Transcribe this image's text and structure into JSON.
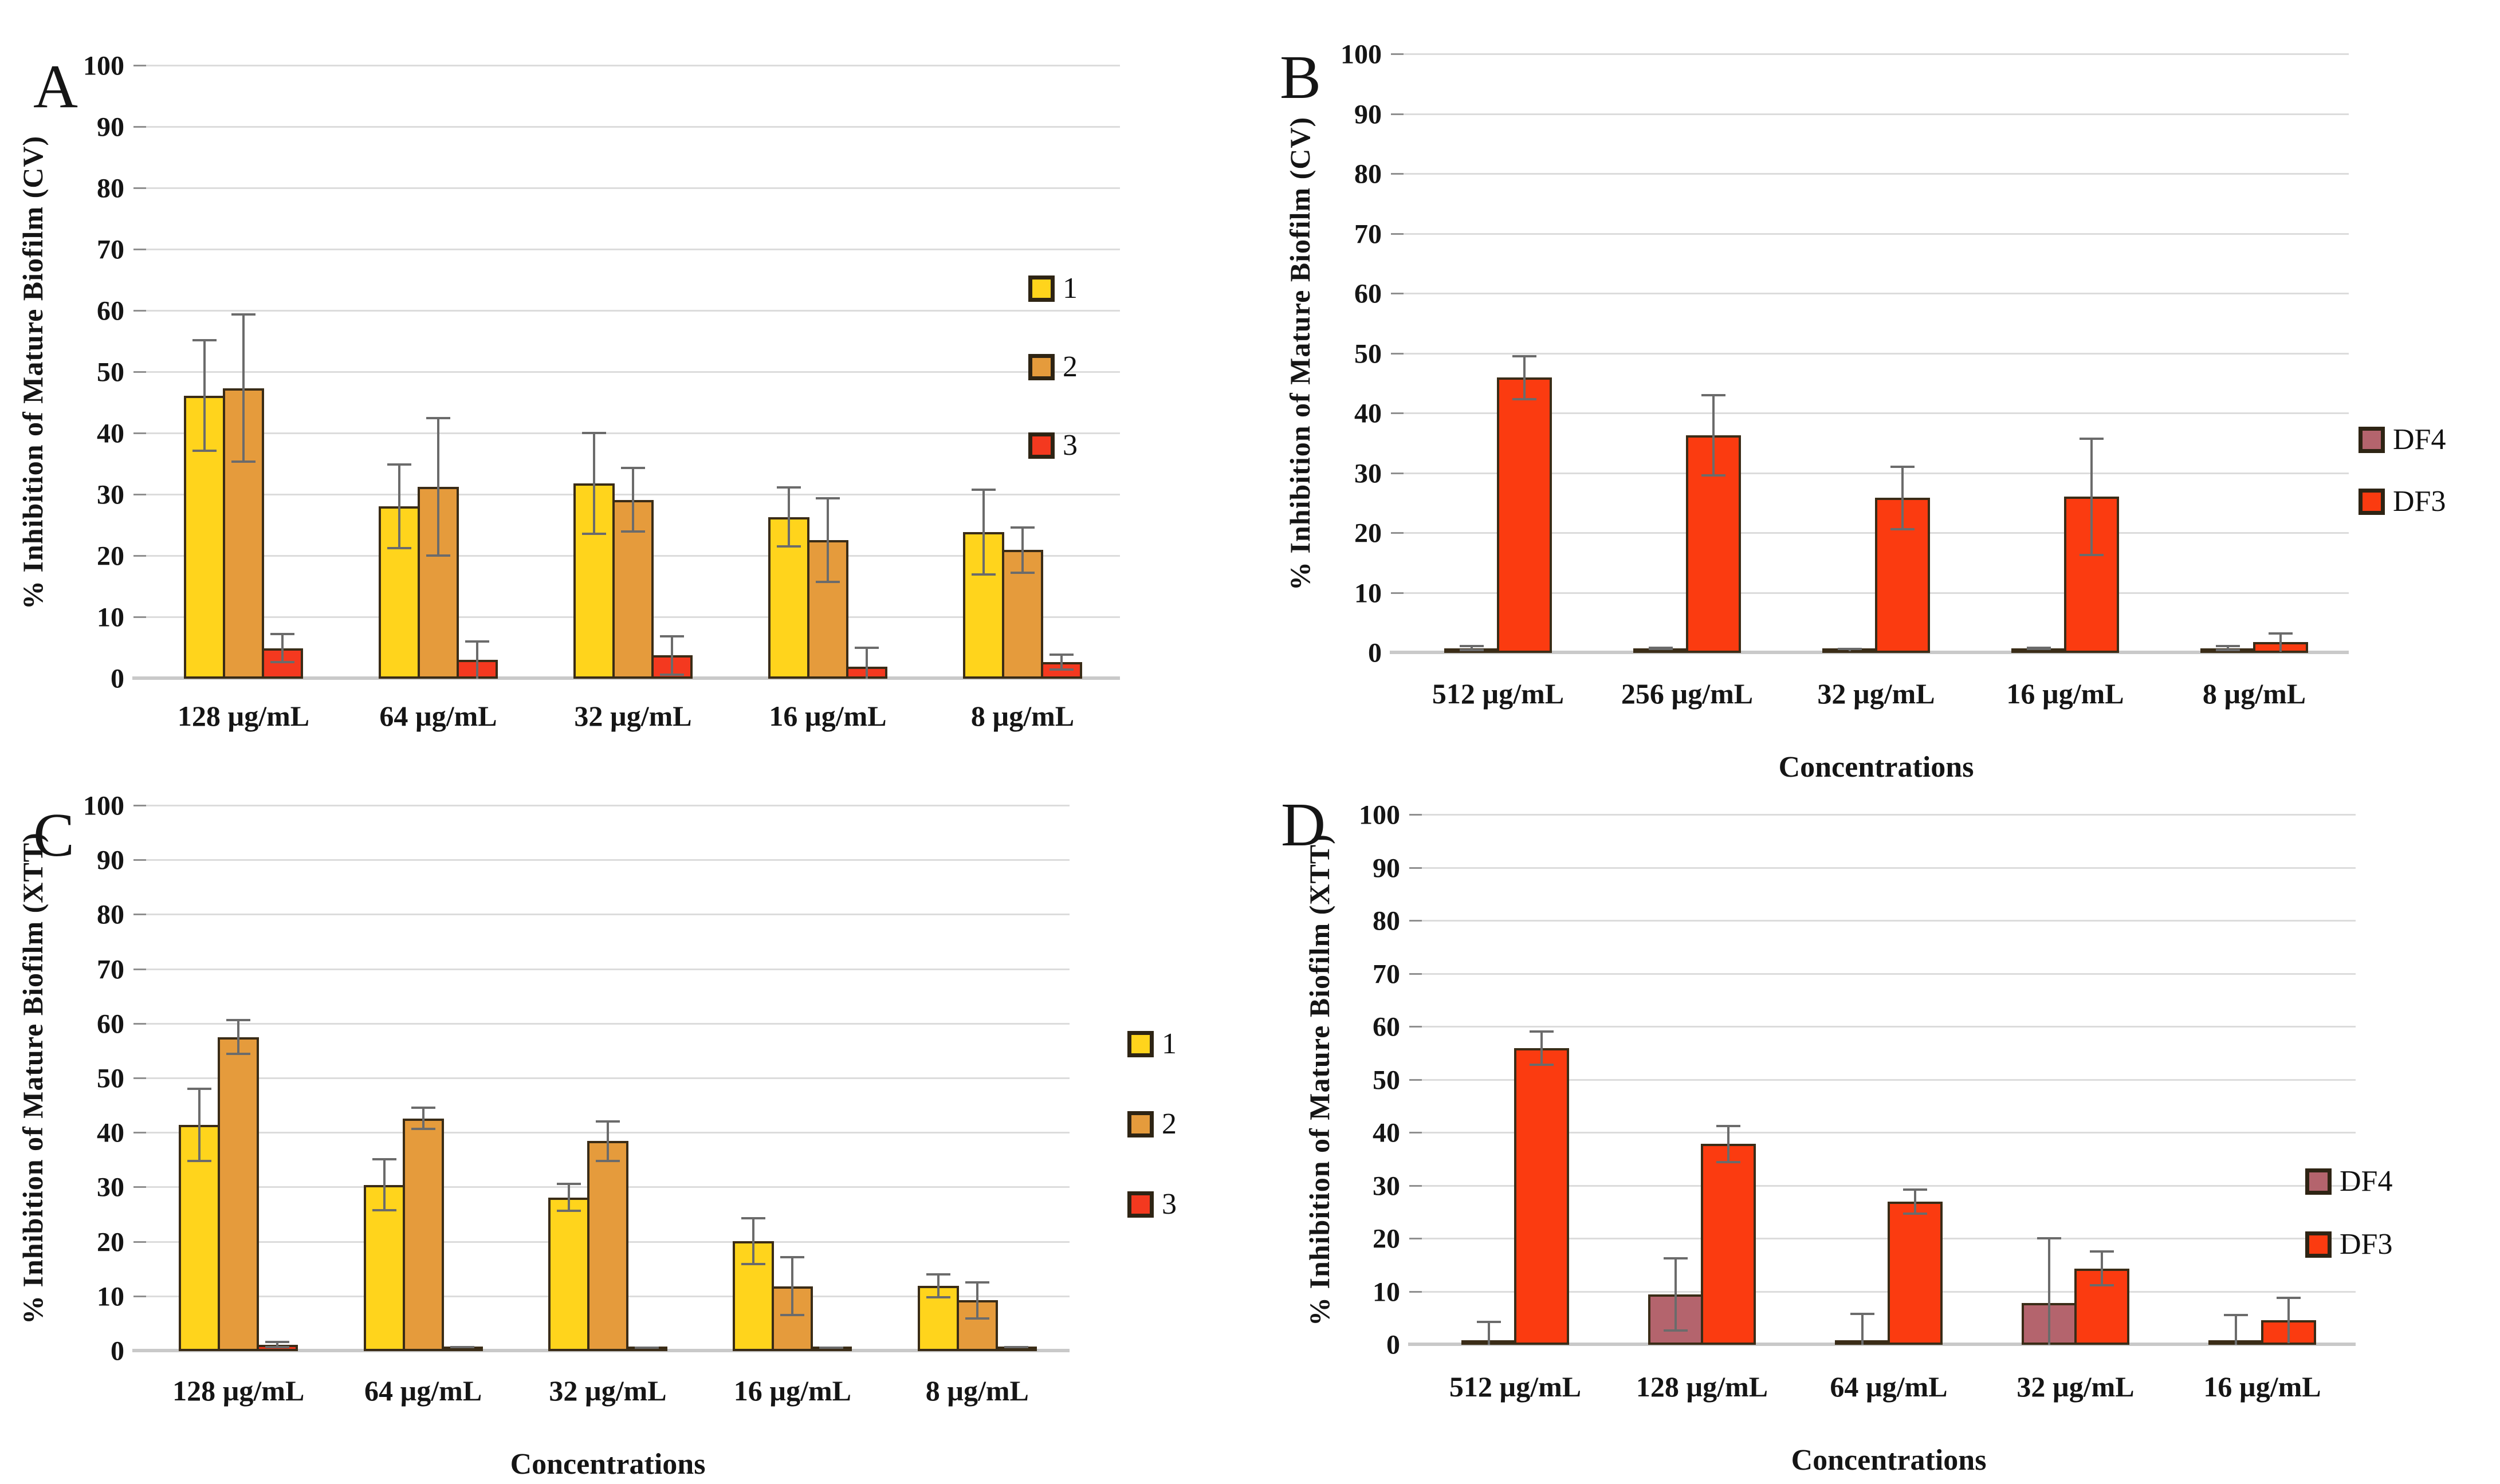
{
  "figure": {
    "background": "#ffffff",
    "text_color": "#1f1f1f"
  },
  "style_colors": {
    "bar_border": "#3a2c17",
    "error_bar": "#6b6b6b",
    "gridline": "#dcdcdc",
    "axis_baseline": "#c9c9c9"
  },
  "chart_data": [
    {
      "type": "bar",
      "panel_label": "A",
      "ylabel": "% Inhibition of Mature Biofilm (CV)",
      "xlabel": "",
      "ylim": [
        0,
        100
      ],
      "ytick_step": 10,
      "grid": true,
      "legend_position": "inside-right",
      "categories": [
        "128 µg/mL",
        "64 µg/mL",
        "32 µg/mL",
        "16 µg/mL",
        "8 µg/mL"
      ],
      "series": [
        {
          "name": "1",
          "color": "#FFD41C",
          "values": [
            46.2,
            28.1,
            31.9,
            26.4,
            23.9
          ],
          "errors": [
            9.2,
            7.0,
            8.4,
            5.0,
            7.1
          ]
        },
        {
          "name": "2",
          "color": "#E59B3C",
          "values": [
            47.4,
            31.3,
            29.2,
            22.6,
            21.0
          ],
          "errors": [
            12.2,
            11.4,
            5.4,
            7.0,
            3.9
          ]
        },
        {
          "name": "3",
          "color": "#F4391F",
          "values": [
            5.0,
            3.1,
            3.8,
            2.0,
            2.7
          ],
          "errors": [
            2.5,
            3.2,
            3.3,
            3.2,
            1.4
          ]
        }
      ]
    },
    {
      "type": "bar",
      "panel_label": "B",
      "ylabel": "% Inhibition of Mature Biofilm (CV)",
      "xlabel": "Concentrations",
      "ylim": [
        0,
        100
      ],
      "ytick_step": 10,
      "grid": true,
      "legend_position": "outside-right",
      "categories": [
        "512 µg/mL",
        "256 µg/mL",
        "32 µg/mL",
        "16 µg/mL",
        "8 µg/mL"
      ],
      "series": [
        {
          "name": "DF4",
          "color": "#B4646D",
          "values": [
            0.8,
            0.8,
            0.6,
            0.8,
            0.8
          ],
          "errors": [
            0.5,
            0.3,
            0.3,
            0.3,
            0.5
          ]
        },
        {
          "name": "DF3",
          "color": "#FB3B10",
          "values": [
            46.0,
            36.4,
            25.9,
            26.1,
            1.8
          ],
          "errors": [
            3.8,
            6.9,
            5.4,
            9.9,
            1.6
          ]
        }
      ]
    },
    {
      "type": "bar",
      "panel_label": "C",
      "ylabel": "% Inhibition of Mature Biofilm (XTT)",
      "xlabel": "Concentrations",
      "ylim": [
        0,
        100
      ],
      "ytick_step": 10,
      "grid": true,
      "legend_position": "outside-right",
      "categories": [
        "128 µg/mL",
        "64 µg/mL",
        "32 µg/mL",
        "16 µg/mL",
        "8 µg/mL"
      ],
      "series": [
        {
          "name": "1",
          "color": "#FFD41C",
          "values": [
            41.5,
            30.5,
            28.2,
            20.2,
            12.0
          ],
          "errors": [
            6.8,
            4.9,
            2.7,
            4.4,
            2.3
          ]
        },
        {
          "name": "2",
          "color": "#E59B3C",
          "values": [
            57.6,
            42.7,
            38.5,
            11.9,
            9.3
          ],
          "errors": [
            3.3,
            2.2,
            3.8,
            5.5,
            3.5
          ]
        },
        {
          "name": "3",
          "color": "#F4391F",
          "values": [
            1.2,
            0.7,
            0.6,
            0.6,
            0.7
          ],
          "errors": [
            0.7,
            0.2,
            0.2,
            0.2,
            0.2
          ]
        }
      ]
    },
    {
      "type": "bar",
      "panel_label": "D",
      "ylabel": "% Inhibition of Mature Biofilm (XTT)",
      "xlabel": "Concentrations",
      "ylim": [
        0,
        100
      ],
      "ytick_step": 10,
      "grid": true,
      "legend_position": "inside-right",
      "categories": [
        "512 µg/mL",
        "128 µg/mL",
        "64 µg/mL",
        "32 µg/mL",
        "16 µg/mL"
      ],
      "series": [
        {
          "name": "DF4",
          "color": "#B4646D",
          "values": [
            0.3,
            9.5,
            0.3,
            7.9,
            0.3
          ],
          "errors": [
            4.2,
            7.0,
            5.8,
            12.4,
            5.5
          ]
        },
        {
          "name": "DF3",
          "color": "#FB3B10",
          "values": [
            56.0,
            37.9,
            27.0,
            14.4,
            4.7
          ],
          "errors": [
            3.3,
            3.6,
            2.5,
            3.4,
            4.4
          ]
        }
      ]
    }
  ]
}
